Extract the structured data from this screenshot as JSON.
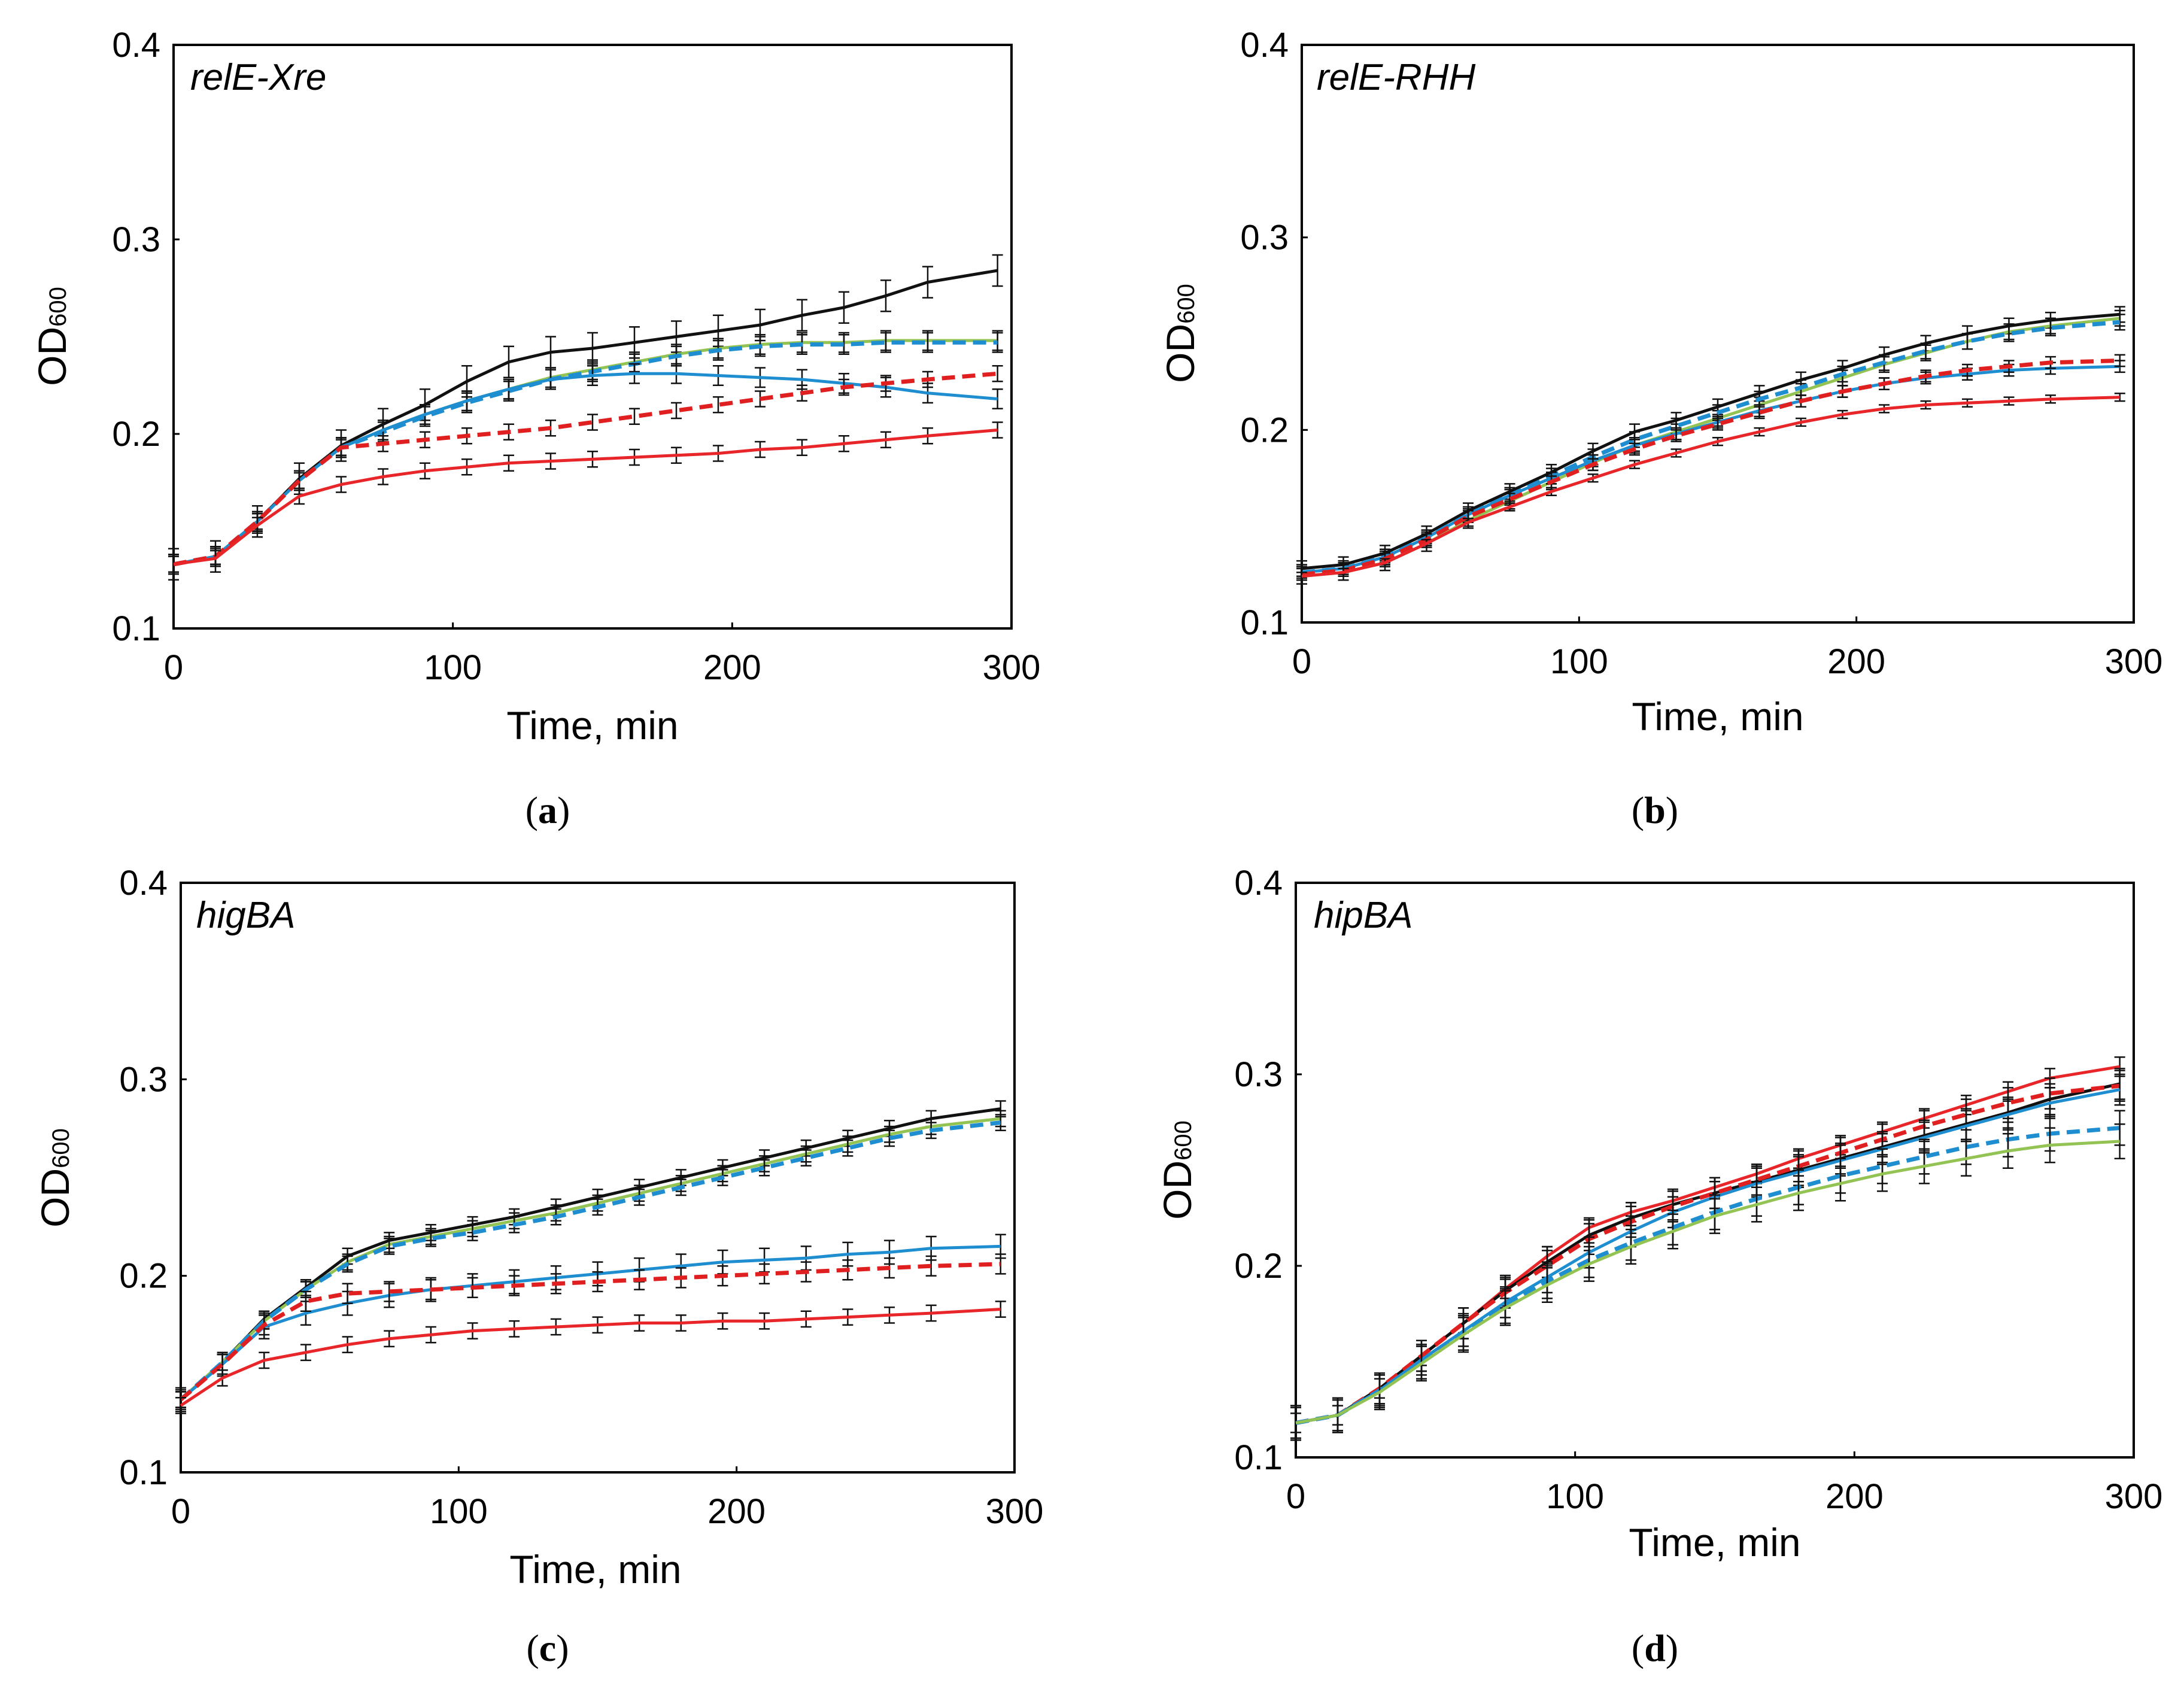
{
  "figure": {
    "colors": {
      "black": "#111111",
      "green": "#92c353",
      "blue": "#1f8ed1",
      "red_dashed": "#e02020",
      "red": "#e8262a"
    }
  },
  "chart_data": [
    {
      "type": "line",
      "panel_label": "a",
      "caption_open": "(",
      "caption_close": ")",
      "title": "relE-Xre",
      "xlabel": "Time, min",
      "ylabel_main": "OD",
      "ylabel_sub": "600",
      "xlim": [
        0,
        300
      ],
      "ylim": [
        0.1,
        0.4
      ],
      "xticks": [
        "0",
        "100",
        "200",
        "300"
      ],
      "yticks": [
        "0.1",
        "0.2",
        "0.3",
        "0.4"
      ],
      "x": [
        0,
        15,
        30,
        45,
        60,
        75,
        90,
        105,
        120,
        135,
        150,
        165,
        180,
        195,
        210,
        225,
        240,
        255,
        270,
        295
      ],
      "series": [
        {
          "name": "black",
          "color": "#111111",
          "dashed": false,
          "err": 0.008,
          "values": [
            0.133,
            0.137,
            0.155,
            0.177,
            0.194,
            0.205,
            0.215,
            0.227,
            0.237,
            0.242,
            0.244,
            0.247,
            0.25,
            0.253,
            0.256,
            0.261,
            0.265,
            0.271,
            0.278,
            0.284
          ]
        },
        {
          "name": "green",
          "color": "#92c353",
          "dashed": false,
          "err": 0.005,
          "values": [
            0.133,
            0.137,
            0.155,
            0.176,
            0.193,
            0.202,
            0.21,
            0.217,
            0.223,
            0.229,
            0.233,
            0.237,
            0.241,
            0.244,
            0.246,
            0.247,
            0.247,
            0.248,
            0.248,
            0.248
          ]
        },
        {
          "name": "blue dashed",
          "color": "#1f8ed1",
          "dashed": true,
          "err": 0.005,
          "values": [
            0.133,
            0.137,
            0.155,
            0.176,
            0.193,
            0.201,
            0.209,
            0.216,
            0.222,
            0.228,
            0.232,
            0.236,
            0.24,
            0.243,
            0.245,
            0.246,
            0.246,
            0.247,
            0.247,
            0.247
          ]
        },
        {
          "name": "blue",
          "color": "#1f8ed1",
          "dashed": false,
          "err": 0.005,
          "values": [
            0.133,
            0.137,
            0.155,
            0.176,
            0.193,
            0.202,
            0.21,
            0.217,
            0.223,
            0.228,
            0.23,
            0.231,
            0.231,
            0.23,
            0.229,
            0.228,
            0.226,
            0.224,
            0.221,
            0.218
          ]
        },
        {
          "name": "red dashed",
          "color": "#e02020",
          "dashed": true,
          "err": 0.004,
          "values": [
            0.133,
            0.137,
            0.155,
            0.176,
            0.193,
            0.195,
            0.197,
            0.199,
            0.201,
            0.203,
            0.206,
            0.209,
            0.212,
            0.215,
            0.218,
            0.221,
            0.224,
            0.226,
            0.228,
            0.231
          ]
        },
        {
          "name": "red",
          "color": "#e8262a",
          "dashed": false,
          "err": 0.004,
          "values": [
            0.133,
            0.136,
            0.153,
            0.168,
            0.174,
            0.178,
            0.181,
            0.183,
            0.185,
            0.186,
            0.187,
            0.188,
            0.189,
            0.19,
            0.192,
            0.193,
            0.195,
            0.197,
            0.199,
            0.202
          ]
        }
      ]
    },
    {
      "type": "line",
      "panel_label": "b",
      "caption_open": "(",
      "caption_close": ")",
      "title": "relE-RHH",
      "xlabel": "Time, min",
      "ylabel_main": "OD",
      "ylabel_sub": "600",
      "xlim": [
        0,
        300
      ],
      "ylim": [
        0.1,
        0.4
      ],
      "xticks": [
        "0",
        "100",
        "200",
        "300"
      ],
      "yticks": [
        "0.1",
        "0.2",
        "0.3",
        "0.4"
      ],
      "x": [
        0,
        15,
        30,
        45,
        60,
        75,
        90,
        105,
        120,
        135,
        150,
        165,
        180,
        195,
        210,
        225,
        240,
        255,
        270,
        295
      ],
      "series": [
        {
          "name": "black",
          "color": "#111111",
          "dashed": false,
          "err": 0.004,
          "values": [
            0.128,
            0.13,
            0.136,
            0.146,
            0.158,
            0.168,
            0.178,
            0.189,
            0.199,
            0.205,
            0.212,
            0.219,
            0.226,
            0.232,
            0.239,
            0.245,
            0.25,
            0.254,
            0.257,
            0.26
          ]
        },
        {
          "name": "green",
          "color": "#92c353",
          "dashed": false,
          "err": 0.004,
          "values": [
            0.124,
            0.126,
            0.131,
            0.141,
            0.153,
            0.163,
            0.173,
            0.183,
            0.192,
            0.199,
            0.206,
            0.213,
            0.22,
            0.227,
            0.234,
            0.24,
            0.246,
            0.251,
            0.254,
            0.258
          ]
        },
        {
          "name": "blue dashed",
          "color": "#1f8ed1",
          "dashed": true,
          "err": 0.004,
          "values": [
            0.126,
            0.128,
            0.134,
            0.144,
            0.156,
            0.166,
            0.176,
            0.186,
            0.195,
            0.202,
            0.209,
            0.216,
            0.222,
            0.229,
            0.235,
            0.241,
            0.246,
            0.25,
            0.253,
            0.256
          ]
        },
        {
          "name": "blue",
          "color": "#1f8ed1",
          "dashed": false,
          "err": 0.003,
          "values": [
            0.126,
            0.128,
            0.134,
            0.144,
            0.156,
            0.166,
            0.175,
            0.184,
            0.192,
            0.198,
            0.204,
            0.21,
            0.215,
            0.22,
            0.224,
            0.227,
            0.229,
            0.231,
            0.232,
            0.233
          ]
        },
        {
          "name": "red dashed",
          "color": "#e02020",
          "dashed": true,
          "err": 0.003,
          "values": [
            0.125,
            0.127,
            0.133,
            0.143,
            0.155,
            0.164,
            0.173,
            0.182,
            0.19,
            0.197,
            0.203,
            0.209,
            0.215,
            0.22,
            0.224,
            0.228,
            0.231,
            0.233,
            0.235,
            0.236
          ]
        },
        {
          "name": "red",
          "color": "#e8262a",
          "dashed": false,
          "err": 0.002,
          "values": [
            0.124,
            0.126,
            0.131,
            0.141,
            0.152,
            0.16,
            0.168,
            0.175,
            0.182,
            0.188,
            0.194,
            0.199,
            0.204,
            0.208,
            0.211,
            0.213,
            0.214,
            0.215,
            0.216,
            0.217
          ]
        }
      ]
    },
    {
      "type": "line",
      "panel_label": "c",
      "caption_open": "(",
      "caption_close": ")",
      "title": "higBA",
      "xlabel": "Time, min",
      "ylabel_main": "OD",
      "ylabel_sub": "600",
      "xlim": [
        0,
        300
      ],
      "ylim": [
        0.1,
        0.4
      ],
      "xticks": [
        "0",
        "100",
        "200",
        "300"
      ],
      "yticks": [
        "0.1",
        "0.2",
        "0.3",
        "0.4"
      ],
      "x": [
        0,
        15,
        30,
        45,
        60,
        75,
        90,
        105,
        120,
        135,
        150,
        165,
        180,
        195,
        210,
        225,
        240,
        255,
        270,
        295
      ],
      "series": [
        {
          "name": "black",
          "color": "#111111",
          "dashed": false,
          "err": 0.004,
          "values": [
            0.137,
            0.156,
            0.178,
            0.194,
            0.21,
            0.218,
            0.222,
            0.226,
            0.23,
            0.235,
            0.24,
            0.245,
            0.25,
            0.255,
            0.26,
            0.265,
            0.27,
            0.275,
            0.28,
            0.285
          ]
        },
        {
          "name": "green",
          "color": "#92c353",
          "dashed": false,
          "err": 0.004,
          "values": [
            0.137,
            0.156,
            0.177,
            0.193,
            0.207,
            0.216,
            0.22,
            0.224,
            0.228,
            0.232,
            0.237,
            0.242,
            0.247,
            0.252,
            0.257,
            0.262,
            0.267,
            0.272,
            0.276,
            0.28
          ]
        },
        {
          "name": "blue dashed",
          "color": "#1f8ed1",
          "dashed": true,
          "err": 0.004,
          "values": [
            0.137,
            0.156,
            0.177,
            0.193,
            0.206,
            0.215,
            0.219,
            0.222,
            0.226,
            0.23,
            0.235,
            0.24,
            0.245,
            0.25,
            0.255,
            0.26,
            0.265,
            0.27,
            0.274,
            0.278
          ]
        },
        {
          "name": "blue",
          "color": "#1f8ed1",
          "dashed": false,
          "err": 0.006,
          "values": [
            0.137,
            0.155,
            0.174,
            0.181,
            0.186,
            0.19,
            0.193,
            0.195,
            0.197,
            0.199,
            0.201,
            0.203,
            0.205,
            0.207,
            0.208,
            0.209,
            0.211,
            0.212,
            0.214,
            0.215
          ]
        },
        {
          "name": "red dashed",
          "color": "#e02020",
          "dashed": true,
          "err": 0.005,
          "values": [
            0.137,
            0.155,
            0.175,
            0.187,
            0.191,
            0.192,
            0.193,
            0.194,
            0.195,
            0.196,
            0.197,
            0.198,
            0.199,
            0.2,
            0.201,
            0.202,
            0.203,
            0.204,
            0.205,
            0.206
          ]
        },
        {
          "name": "red",
          "color": "#e8262a",
          "dashed": false,
          "err": 0.004,
          "values": [
            0.134,
            0.148,
            0.157,
            0.161,
            0.165,
            0.168,
            0.17,
            0.172,
            0.173,
            0.174,
            0.175,
            0.176,
            0.176,
            0.177,
            0.177,
            0.178,
            0.179,
            0.18,
            0.181,
            0.183
          ]
        }
      ]
    },
    {
      "type": "line",
      "panel_label": "d",
      "caption_open": "(",
      "caption_close": ")",
      "title": "hipBA",
      "xlabel": "Time, min",
      "ylabel_main": "OD",
      "ylabel_sub": "600",
      "xlim": [
        0,
        300
      ],
      "ylim": [
        0.1,
        0.4
      ],
      "xticks": [
        "0",
        "100",
        "200",
        "300"
      ],
      "yticks": [
        "0.1",
        "0.2",
        "0.3",
        "0.4"
      ],
      "x": [
        0,
        15,
        30,
        45,
        60,
        75,
        90,
        105,
        120,
        135,
        150,
        165,
        180,
        195,
        210,
        225,
        240,
        255,
        270,
        295
      ],
      "series": [
        {
          "name": "red",
          "color": "#e8262a",
          "dashed": false,
          "err": 0.005,
          "values": [
            0.118,
            0.122,
            0.136,
            0.153,
            0.17,
            0.188,
            0.205,
            0.22,
            0.228,
            0.234,
            0.241,
            0.248,
            0.256,
            0.263,
            0.27,
            0.277,
            0.284,
            0.291,
            0.298,
            0.304
          ]
        },
        {
          "name": "black",
          "color": "#111111",
          "dashed": false,
          "err": 0.008,
          "values": [
            0.118,
            0.122,
            0.136,
            0.153,
            0.17,
            0.187,
            0.202,
            0.216,
            0.225,
            0.232,
            0.238,
            0.244,
            0.25,
            0.256,
            0.262,
            0.268,
            0.274,
            0.28,
            0.287,
            0.295
          ]
        },
        {
          "name": "red dashed",
          "color": "#e02020",
          "dashed": true,
          "err": 0.008,
          "values": [
            0.118,
            0.122,
            0.136,
            0.153,
            0.17,
            0.186,
            0.2,
            0.214,
            0.223,
            0.231,
            0.238,
            0.245,
            0.252,
            0.259,
            0.266,
            0.273,
            0.279,
            0.285,
            0.29,
            0.294
          ]
        },
        {
          "name": "blue",
          "color": "#1f8ed1",
          "dashed": false,
          "err": 0.008,
          "values": [
            0.118,
            0.122,
            0.135,
            0.151,
            0.166,
            0.181,
            0.194,
            0.207,
            0.218,
            0.228,
            0.236,
            0.243,
            0.249,
            0.255,
            0.261,
            0.267,
            0.273,
            0.279,
            0.285,
            0.292
          ]
        },
        {
          "name": "blue dashed",
          "color": "#1f8ed1",
          "dashed": true,
          "err": 0.009,
          "values": [
            0.118,
            0.122,
            0.135,
            0.15,
            0.165,
            0.179,
            0.192,
            0.203,
            0.212,
            0.22,
            0.228,
            0.235,
            0.241,
            0.247,
            0.252,
            0.257,
            0.262,
            0.266,
            0.269,
            0.272
          ]
        },
        {
          "name": "green",
          "color": "#92c353",
          "dashed": false,
          "err": 0.009,
          "values": [
            0.118,
            0.122,
            0.134,
            0.149,
            0.164,
            0.178,
            0.19,
            0.201,
            0.21,
            0.218,
            0.226,
            0.232,
            0.238,
            0.243,
            0.248,
            0.252,
            0.256,
            0.26,
            0.263,
            0.265
          ]
        }
      ]
    }
  ]
}
